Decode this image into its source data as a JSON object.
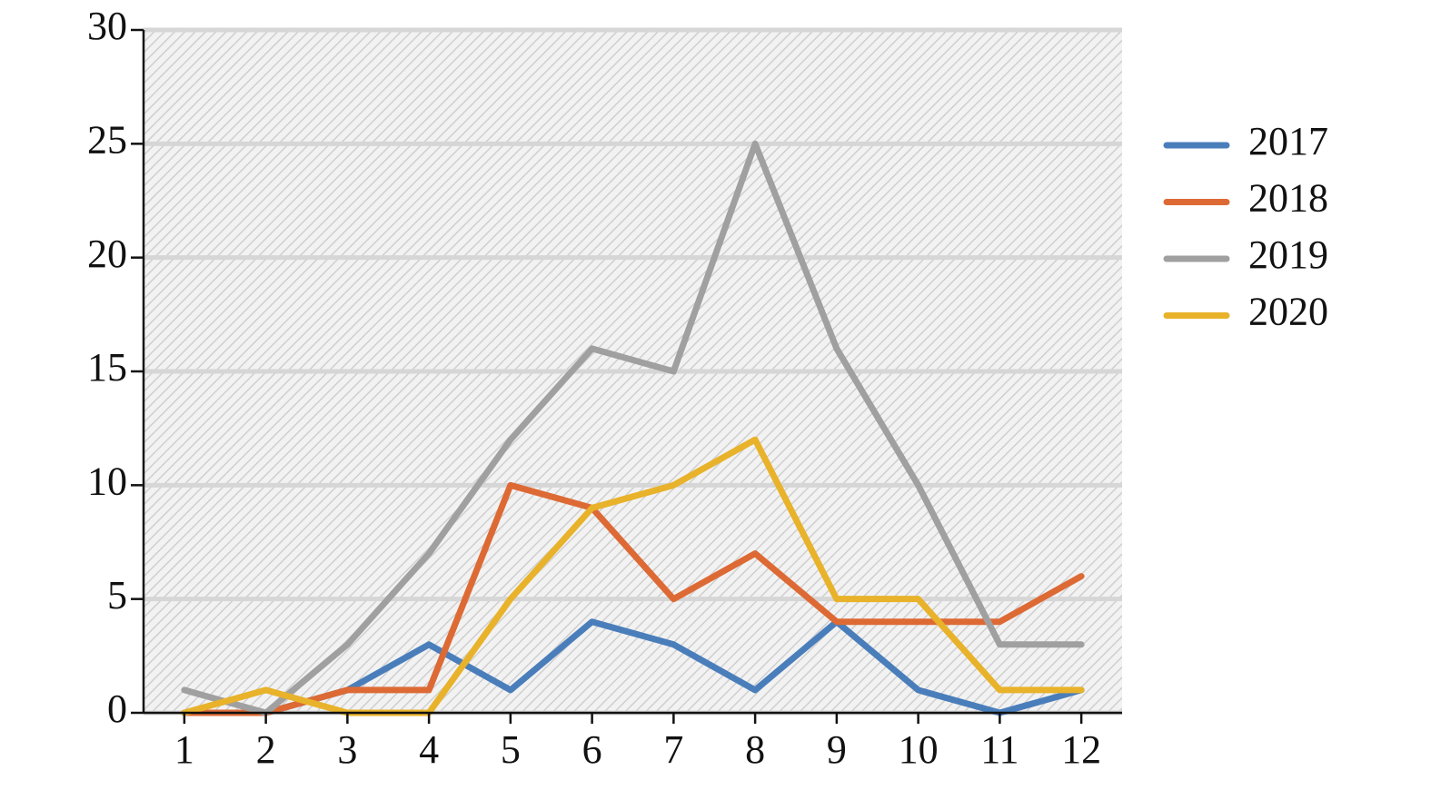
{
  "chart_data": {
    "type": "line",
    "categories": [
      "1",
      "2",
      "3",
      "4",
      "5",
      "6",
      "7",
      "8",
      "9",
      "10",
      "11",
      "12"
    ],
    "series": [
      {
        "name": "2017",
        "color": "#4a7ebb",
        "values": [
          0,
          0,
          1,
          3,
          1,
          4,
          3,
          1,
          4,
          1,
          0,
          1
        ]
      },
      {
        "name": "2018",
        "color": "#dd6a35",
        "values": [
          0,
          0,
          1,
          1,
          10,
          9,
          5,
          7,
          4,
          4,
          4,
          6
        ]
      },
      {
        "name": "2019",
        "color": "#a0a0a0",
        "values": [
          1,
          0,
          3,
          7,
          12,
          16,
          15,
          25,
          16,
          10,
          3,
          3
        ]
      },
      {
        "name": "2020",
        "color": "#e8b22a",
        "values": [
          0,
          1,
          0,
          0,
          5,
          9,
          10,
          12,
          5,
          5,
          1,
          1
        ]
      }
    ],
    "ylim": [
      0,
      30
    ],
    "yticks": [
      0,
      5,
      10,
      15,
      20,
      25,
      30
    ],
    "grid": true,
    "legend": "right"
  }
}
